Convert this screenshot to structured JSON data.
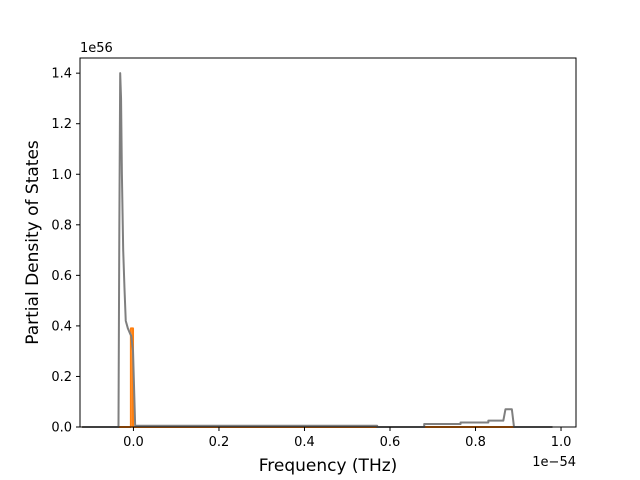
{
  "chart_data": {
    "type": "line",
    "title": "",
    "xlabel": "Frequency (THz)",
    "ylabel": "Partial Density of States",
    "x_offset_text": "1e−54",
    "y_offset_text": "1e56",
    "xlim": [
      -0.125,
      1.035
    ],
    "ylim": [
      0,
      1.46
    ],
    "x_ticks": [
      0.0,
      0.2,
      0.4,
      0.6,
      0.8,
      1.0
    ],
    "x_tick_labels": [
      "0.0",
      "0.2",
      "0.4",
      "0.6",
      "0.8",
      "1.0"
    ],
    "y_ticks": [
      0.0,
      0.2,
      0.4,
      0.6,
      0.8,
      1.0,
      1.2,
      1.4
    ],
    "y_tick_labels": [
      "0.0",
      "0.2",
      "0.4",
      "0.6",
      "0.8",
      "1.0",
      "1.2",
      "1.4"
    ],
    "grid": false,
    "legend": "none",
    "series": [
      {
        "color": "#ff7f0e",
        "points": [
          [
            -0.12,
            0.0
          ],
          [
            -0.006,
            0.0
          ],
          [
            -0.006,
            0.39
          ],
          [
            -0.001,
            0.39
          ],
          [
            -0.001,
            0.0
          ],
          [
            0.98,
            0.0
          ]
        ]
      },
      {
        "color": "#7f7f7f",
        "points": [
          [
            -0.12,
            0.0
          ],
          [
            -0.035,
            0.0
          ],
          [
            -0.033,
            0.8
          ],
          [
            -0.031,
            1.4
          ],
          [
            -0.029,
            1.3
          ],
          [
            -0.027,
            1.0
          ],
          [
            -0.024,
            0.7
          ],
          [
            -0.021,
            0.55
          ],
          [
            -0.018,
            0.42
          ],
          [
            -0.013,
            0.39
          ],
          [
            -0.008,
            0.37
          ],
          [
            -0.005,
            0.36
          ],
          [
            -0.001,
            0.3
          ],
          [
            0.004,
            0.005
          ],
          [
            0.57,
            0.005
          ],
          [
            0.57,
            0.0
          ],
          [
            0.68,
            0.0
          ],
          [
            0.68,
            0.012
          ],
          [
            0.765,
            0.012
          ],
          [
            0.765,
            0.018
          ],
          [
            0.83,
            0.018
          ],
          [
            0.83,
            0.025
          ],
          [
            0.865,
            0.025
          ],
          [
            0.87,
            0.07
          ],
          [
            0.885,
            0.07
          ],
          [
            0.89,
            0.0
          ],
          [
            0.98,
            0.0
          ]
        ]
      }
    ]
  }
}
